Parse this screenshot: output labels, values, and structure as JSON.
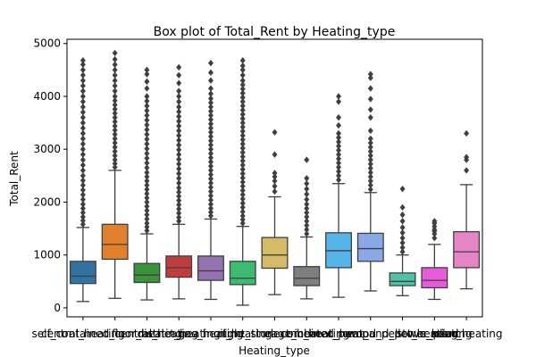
{
  "chart_data": {
    "type": "box",
    "title": "Box plot of Total_Rent by Heating_type",
    "xlabel": "Heating_type",
    "ylabel": "Total_Rent",
    "ylim": [
      -170,
      5080
    ],
    "yticks": [
      0,
      1000,
      2000,
      3000,
      4000,
      5000
    ],
    "grid": false,
    "legend": "none",
    "outlier_marker": "diamond",
    "categories": [
      "central_heating",
      "self_contained_central_heating",
      "floor_heating",
      "district_heating",
      "gas_heating",
      "oil_heating",
      "night_storage_heater",
      "electric_heating",
      "heat_pump",
      "combined_heat_and_power_plant",
      "wood_pellet_heating",
      "stove_heating",
      "solar_heating"
    ],
    "series": [
      {
        "color": "#3274a1",
        "whisker_low": 120,
        "q1": 460,
        "median": 600,
        "q3": 880,
        "whisker_high": 1520,
        "outliers": [
          1580,
          1650,
          1720,
          1800,
          1880,
          1960,
          2050,
          2140,
          2230,
          2320,
          2410,
          2500,
          2600,
          2700,
          2800,
          2900,
          3000,
          3100,
          3200,
          3300,
          3400,
          3500,
          3600,
          3700,
          3800,
          3900,
          4000,
          4100,
          4200,
          4300,
          4400,
          4500,
          4600,
          4680
        ]
      },
      {
        "color": "#e1812c",
        "whisker_low": 180,
        "q1": 920,
        "median": 1200,
        "q3": 1580,
        "whisker_high": 2600,
        "outliers": [
          2660,
          2730,
          2800,
          2880,
          2960,
          3040,
          3120,
          3200,
          3280,
          3360,
          3440,
          3520,
          3600,
          3680,
          3760,
          3840,
          3920,
          4000,
          4100,
          4200,
          4300,
          4400,
          4500,
          4600,
          4700,
          4820
        ]
      },
      {
        "color": "#3a923a",
        "whisker_low": 150,
        "q1": 480,
        "median": 620,
        "q3": 840,
        "whisker_high": 1400,
        "outliers": [
          1460,
          1530,
          1600,
          1680,
          1760,
          1840,
          1920,
          2000,
          2080,
          2160,
          2240,
          2320,
          2400,
          2480,
          2560,
          2650,
          2740,
          2830,
          2920,
          3010,
          3100,
          3190,
          3280,
          3370,
          3460,
          3550,
          3640,
          3730,
          3820,
          3910,
          4000,
          4150,
          4280,
          4420,
          4500
        ]
      },
      {
        "color": "#c03d3e",
        "whisker_low": 170,
        "q1": 580,
        "median": 760,
        "q3": 980,
        "whisker_high": 1580,
        "outliers": [
          1640,
          1710,
          1790,
          1870,
          1950,
          2030,
          2110,
          2190,
          2270,
          2360,
          2450,
          2540,
          2630,
          2720,
          2810,
          2900,
          2990,
          3080,
          3170,
          3260,
          3350,
          3440,
          3530,
          3620,
          3710,
          3800,
          3900,
          4000,
          4100,
          4250,
          4400,
          4550
        ]
      },
      {
        "color": "#9372b2",
        "whisker_low": 160,
        "q1": 520,
        "median": 700,
        "q3": 980,
        "whisker_high": 1680,
        "outliers": [
          1740,
          1810,
          1880,
          1960,
          2040,
          2120,
          2200,
          2280,
          2360,
          2440,
          2520,
          2600,
          2680,
          2760,
          2840,
          2920,
          3000,
          3080,
          3160,
          3240,
          3320,
          3400,
          3480,
          3560,
          3640,
          3720,
          3800,
          3880,
          3960,
          4050,
          4150,
          4300,
          4450,
          4630
        ]
      },
      {
        "color": "#3dbb6e",
        "whisker_low": 50,
        "q1": 440,
        "median": 560,
        "q3": 880,
        "whisker_high": 1540,
        "outliers": [
          1600,
          1670,
          1740,
          1820,
          1900,
          1980,
          2060,
          2140,
          2220,
          2300,
          2380,
          2460,
          2540,
          2620,
          2700,
          2780,
          2860,
          2940,
          3020,
          3100,
          3180,
          3260,
          3340,
          3420,
          3500,
          3580,
          3660,
          3740,
          3820,
          3900,
          3980,
          4060,
          4140,
          4220,
          4300,
          4400,
          4500,
          4580,
          4680
        ]
      },
      {
        "color": "#d5bb67",
        "whisker_low": 250,
        "q1": 750,
        "median": 1000,
        "q3": 1330,
        "whisker_high": 2100,
        "outliers": [
          2200,
          2300,
          2400,
          2480,
          2550,
          2900,
          3320
        ]
      },
      {
        "color": "#7e7e7e",
        "whisker_low": 170,
        "q1": 420,
        "median": 560,
        "q3": 780,
        "whisker_high": 1340,
        "outliers": [
          1400,
          1480,
          1560,
          1640,
          1720,
          1800,
          1880,
          1960,
          2050,
          2150,
          2250,
          2350,
          2450,
          2800
        ]
      },
      {
        "color": "#56b4e9",
        "whisker_low": 200,
        "q1": 760,
        "median": 1080,
        "q3": 1420,
        "whisker_high": 2350,
        "outliers": [
          2420,
          2500,
          2580,
          2660,
          2740,
          2820,
          2900,
          2980,
          3060,
          3140,
          3220,
          3300,
          3450,
          3600,
          3900,
          4000
        ]
      },
      {
        "color": "#8aa8e8",
        "whisker_low": 320,
        "q1": 880,
        "median": 1120,
        "q3": 1410,
        "whisker_high": 2180,
        "outliers": [
          2240,
          2320,
          2400,
          2480,
          2560,
          2640,
          2720,
          2800,
          2880,
          2960,
          3040,
          3120,
          3200,
          3350,
          3600,
          3750,
          3950,
          4150,
          4350,
          4420
        ]
      },
      {
        "color": "#4cc3a7",
        "whisker_low": 230,
        "q1": 420,
        "median": 500,
        "q3": 660,
        "whisker_high": 1000,
        "outliers": [
          1060,
          1140,
          1230,
          1320,
          1420,
          1520,
          1640,
          1760,
          1900,
          2250
        ]
      },
      {
        "color": "#e65bd7",
        "whisker_low": 160,
        "q1": 380,
        "median": 520,
        "q3": 760,
        "whisker_high": 1200,
        "outliers": [
          1320,
          1400,
          1450,
          1480,
          1540,
          1600,
          1640
        ]
      },
      {
        "color": "#e585c5",
        "whisker_low": 360,
        "q1": 760,
        "median": 1060,
        "q3": 1440,
        "whisker_high": 2330,
        "outliers": [
          2600,
          2800,
          2850,
          3300
        ]
      }
    ]
  }
}
